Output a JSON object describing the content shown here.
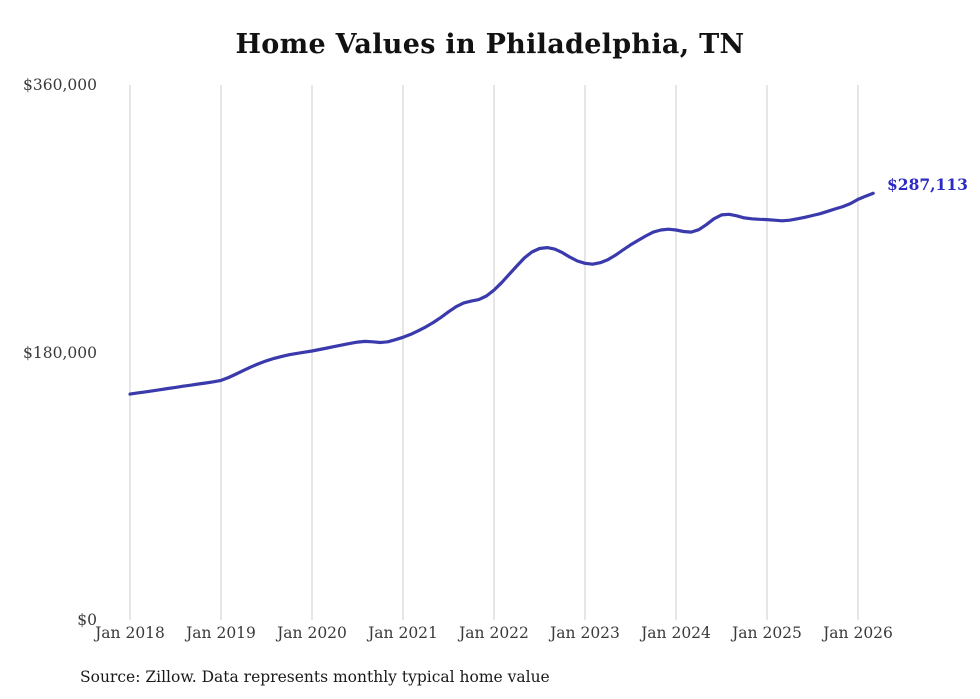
{
  "chart_data": {
    "type": "line",
    "title": "Home Values in Philadelphia, TN",
    "source": "Source: Zillow. Data represents monthly typical home value",
    "x_start": "Jan 2018",
    "x_interval": "monthly",
    "x_tick_labels": [
      "Jan 2018",
      "Jan 2019",
      "Jan 2020",
      "Jan 2021",
      "Jan 2022",
      "Jan 2023",
      "Jan 2024",
      "Jan 2025",
      "Jan 2026"
    ],
    "y_tick_labels": [
      "$360,000",
      "$180,000",
      "$0"
    ],
    "ylim": [
      0,
      360000
    ],
    "end_label": "$287,113",
    "end_value": 287113,
    "line_color": "#3a3aad",
    "label_color": "#2b2bc4",
    "grid_color": "#cccccc",
    "legend": "none",
    "grid": "vertical-only",
    "values": [
      152000,
      152800,
      153500,
      154200,
      155000,
      155800,
      156500,
      157300,
      158000,
      158800,
      159500,
      160300,
      161200,
      163200,
      165500,
      168000,
      170400,
      172500,
      174400,
      176000,
      177400,
      178500,
      179400,
      180200,
      181000,
      182000,
      183000,
      184100,
      185100,
      186100,
      187000,
      187500,
      187200,
      186700,
      187200,
      188600,
      190200,
      192200,
      194600,
      197200,
      200200,
      203600,
      207400,
      210800,
      213400,
      214600,
      215600,
      218000,
      222000,
      227000,
      232600,
      238200,
      243600,
      247600,
      250000,
      250600,
      249600,
      247200,
      244200,
      241600,
      240000,
      239400,
      240400,
      242400,
      245400,
      249000,
      252400,
      255400,
      258400,
      261000,
      262400,
      263000,
      262400,
      261400,
      261000,
      262600,
      266000,
      270000,
      272600,
      273000,
      272000,
      270600,
      270000,
      269600,
      269400,
      269000,
      268600,
      269000,
      270000,
      271000,
      272200,
      273400,
      275000,
      276600,
      278200,
      280200,
      283000,
      285200,
      287113
    ]
  }
}
